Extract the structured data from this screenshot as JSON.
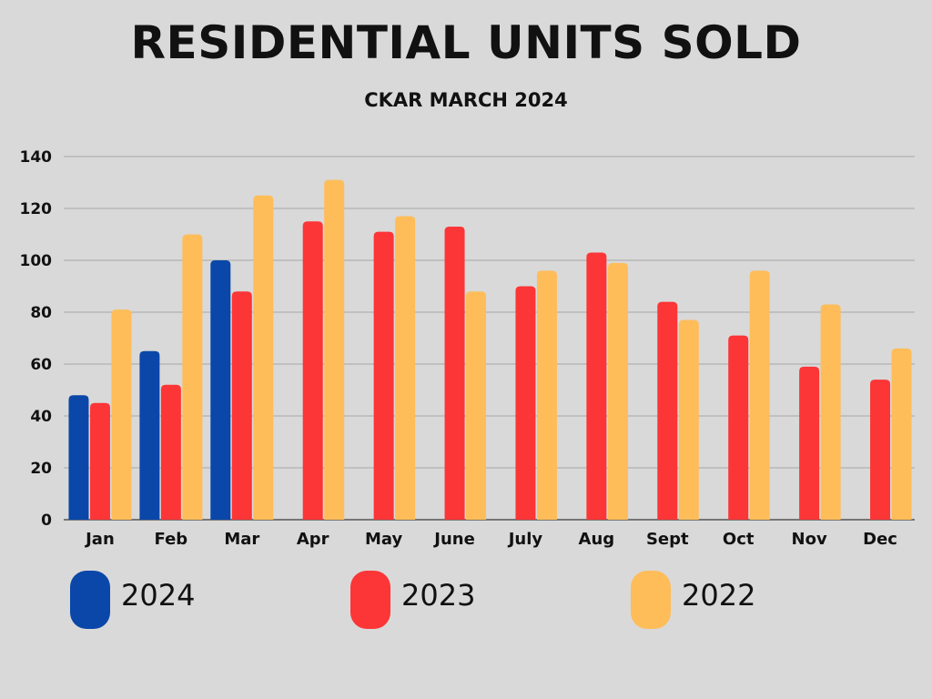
{
  "chart_data": {
    "type": "bar",
    "title": "RESIDENTIAL UNITS SOLD",
    "subtitle": "CKAR MARCH 2024",
    "xlabel": "",
    "ylabel": "",
    "ylim": [
      0,
      140
    ],
    "yticks": [
      0,
      20,
      40,
      60,
      80,
      100,
      120,
      140
    ],
    "grid": true,
    "legend_position": "bottom",
    "categories": [
      "Jan",
      "Feb",
      "Mar",
      "Apr",
      "May",
      "June",
      "July",
      "Aug",
      "Sept",
      "Oct",
      "Nov",
      "Dec"
    ],
    "series": [
      {
        "name": "2024",
        "color": "#0a47a9",
        "values": [
          48,
          65,
          100,
          null,
          null,
          null,
          null,
          null,
          null,
          null,
          null,
          null
        ]
      },
      {
        "name": "2023",
        "color": "#fc3537",
        "values": [
          45,
          52,
          88,
          115,
          111,
          113,
          90,
          103,
          84,
          71,
          59,
          54
        ]
      },
      {
        "name": "2022",
        "color": "#febd59",
        "values": [
          81,
          110,
          125,
          131,
          117,
          88,
          96,
          99,
          77,
          96,
          83,
          66
        ]
      }
    ]
  }
}
